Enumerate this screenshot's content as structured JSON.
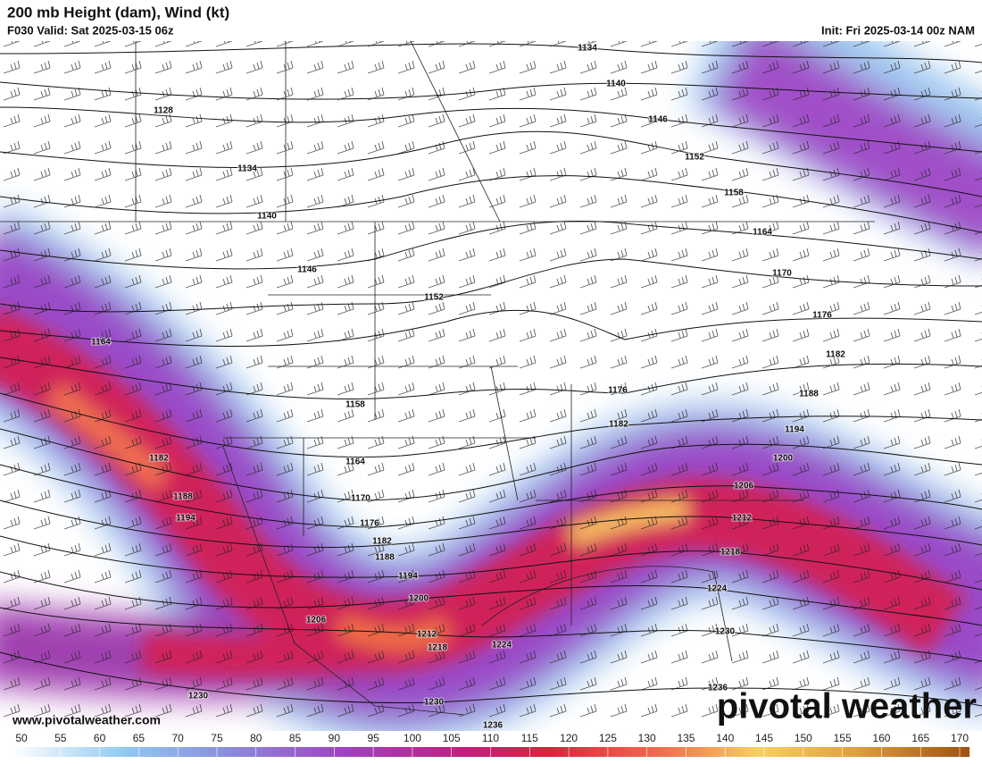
{
  "header": {
    "title": "200 mb Height (dam), Wind (kt)",
    "valid": "F030 Valid: Sat 2025-03-15 06z",
    "init": "Init: Fri 2025-03-14 00z NAM"
  },
  "contour_labels": [
    "1134",
    "1140",
    "1128",
    "1146",
    "1152",
    "1134",
    "1158",
    "1140",
    "1164",
    "1146",
    "1170",
    "1152",
    "1176",
    "1164",
    "1182",
    "1176",
    "1188",
    "1158",
    "1182",
    "1194",
    "1182",
    "1164",
    "1200",
    "1206",
    "1188",
    "1170",
    "1194",
    "1212",
    "1176",
    "1182",
    "1218",
    "1188",
    "1194",
    "1224",
    "1200",
    "1206",
    "1212",
    "1230",
    "1218",
    "1224",
    "1230",
    "1236",
    "1230",
    "1236"
  ],
  "colorbar": {
    "ticks": [
      50,
      55,
      60,
      65,
      70,
      75,
      80,
      85,
      90,
      95,
      100,
      105,
      110,
      115,
      120,
      125,
      130,
      135,
      140,
      145,
      150,
      155,
      160,
      165,
      170
    ]
  },
  "footer": {
    "url": "www.pivotalweather.com",
    "brand": "pivotal weather"
  }
}
